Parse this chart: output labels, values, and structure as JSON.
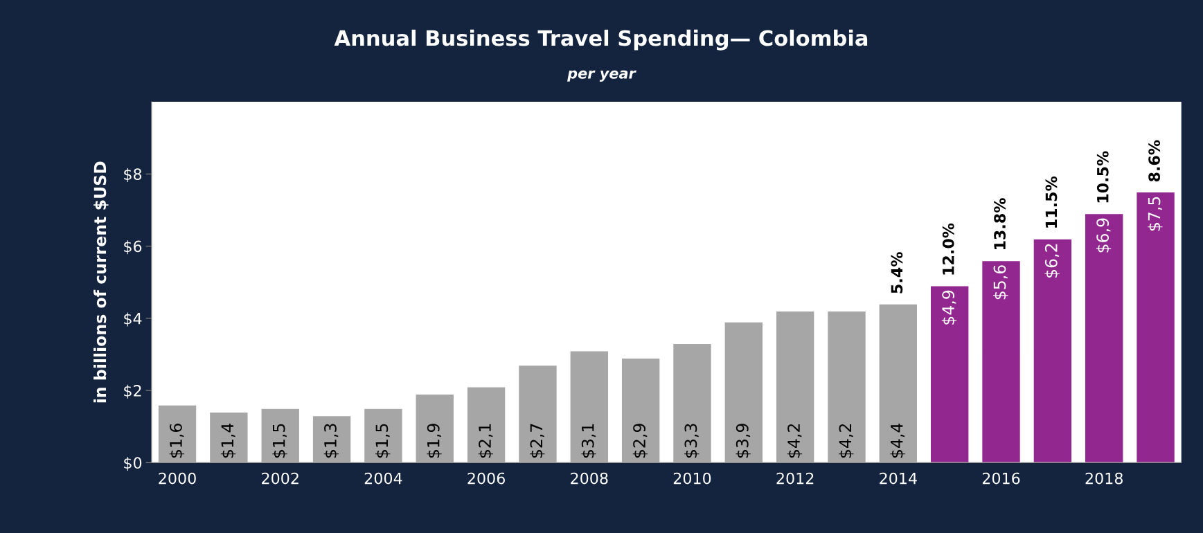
{
  "chart_data": {
    "type": "bar",
    "title": "Annual Business Travel Spending— Colombia",
    "subtitle": "per year",
    "ylabel": "in billions of current $USD",
    "categories": [
      "2000",
      null,
      "2002",
      null,
      "2004",
      null,
      "2006",
      null,
      "2008",
      null,
      "2010",
      null,
      "2012",
      null,
      "2014",
      null,
      "2016",
      null,
      "2018",
      null
    ],
    "values": [
      1.6,
      1.4,
      1.5,
      1.3,
      1.5,
      1.9,
      2.1,
      2.7,
      3.1,
      2.9,
      3.3,
      3.9,
      4.2,
      4.2,
      4.4,
      4.9,
      5.6,
      6.2,
      6.9,
      7.5
    ],
    "colors": [
      "#a6a6a6",
      "#a6a6a6",
      "#a6a6a6",
      "#a6a6a6",
      "#a6a6a6",
      "#a6a6a6",
      "#a6a6a6",
      "#a6a6a6",
      "#a6a6a6",
      "#a6a6a6",
      "#a6a6a6",
      "#a6a6a6",
      "#a6a6a6",
      "#a6a6a6",
      "#a6a6a6",
      "#92278f",
      "#92278f",
      "#92278f",
      "#92278f",
      "#92278f"
    ],
    "value_labels": [
      "$1,6",
      "$1,4",
      "$1,5",
      "$1,3",
      "$1,5",
      "$1,9",
      "$2,1",
      "$2,7",
      "$3,1",
      "$2,9",
      "$3,3",
      "$3,9",
      "$4,2",
      "$4,2",
      "$4,4",
      "$4,9",
      "$5,6",
      "$6,2",
      "$6,9",
      "$7,5"
    ],
    "annotations": [
      {
        "text": "5.4%",
        "y": 4.4
      },
      {
        "text": "12.0%",
        "y": 4.9
      },
      {
        "text": "13.8%",
        "y": 5.6
      },
      {
        "text": "11.5%",
        "y": 6.2
      },
      {
        "text": "10.5%",
        "y": 6.9
      },
      {
        "text": "8.6%",
        "y": 7.5
      }
    ],
    "ylim": [
      0,
      10
    ],
    "yticks": [
      {
        "value": 0,
        "label": "$0"
      },
      {
        "value": 2,
        "label": "$2"
      },
      {
        "value": 4,
        "label": "$4"
      },
      {
        "value": 6,
        "label": "$6"
      },
      {
        "value": 8,
        "label": "$8"
      }
    ],
    "grid": false,
    "legend": false
  }
}
